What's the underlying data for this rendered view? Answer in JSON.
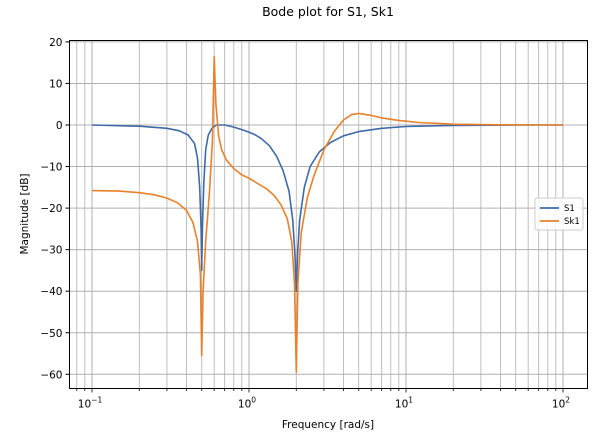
{
  "chart_data": {
    "type": "line",
    "title": "Bode plot for S1, Sk1",
    "xlabel": "Frequency [rad/s]",
    "ylabel": "Magnitude [dB]",
    "xscale": "log",
    "xlim": [
      0.075,
      140
    ],
    "ylim": [
      -63,
      20.5
    ],
    "grid": true,
    "grid_minor_x": true,
    "legend_position": "center right",
    "x_ticks": [
      {
        "value": 0.1,
        "label": "10^-1"
      },
      {
        "value": 1,
        "label": "10^0"
      },
      {
        "value": 10,
        "label": "10^1"
      },
      {
        "value": 100,
        "label": "10^2"
      }
    ],
    "y_ticks": [
      20,
      10,
      0,
      -10,
      -20,
      -30,
      -40,
      -50,
      -60
    ],
    "series": [
      {
        "name": "S1",
        "color": "#3f6aa8",
        "points": [
          [
            0.1,
            0.0
          ],
          [
            0.2,
            -0.3
          ],
          [
            0.3,
            -0.8
          ],
          [
            0.36,
            -1.4
          ],
          [
            0.41,
            -2.4
          ],
          [
            0.45,
            -4.5
          ],
          [
            0.47,
            -8
          ],
          [
            0.485,
            -15
          ],
          [
            0.495,
            -25
          ],
          [
            0.5,
            -35
          ],
          [
            0.505,
            -25
          ],
          [
            0.515,
            -14
          ],
          [
            0.53,
            -6
          ],
          [
            0.55,
            -2.5
          ],
          [
            0.58,
            -0.8
          ],
          [
            0.62,
            0.0
          ],
          [
            0.7,
            0.0
          ],
          [
            0.8,
            -0.5
          ],
          [
            0.9,
            -1.1
          ],
          [
            1.0,
            -1.7
          ],
          [
            1.1,
            -2.4
          ],
          [
            1.2,
            -3.3
          ],
          [
            1.35,
            -5
          ],
          [
            1.5,
            -7.5
          ],
          [
            1.65,
            -11
          ],
          [
            1.8,
            -16
          ],
          [
            1.9,
            -23
          ],
          [
            1.96,
            -31
          ],
          [
            2.0,
            -40
          ],
          [
            2.04,
            -31
          ],
          [
            2.1,
            -23
          ],
          [
            2.25,
            -15
          ],
          [
            2.45,
            -10
          ],
          [
            2.8,
            -6.5
          ],
          [
            3.3,
            -4.2
          ],
          [
            4.0,
            -2.6
          ],
          [
            5.0,
            -1.6
          ],
          [
            7.0,
            -0.8
          ],
          [
            10.0,
            -0.35
          ],
          [
            20.0,
            -0.1
          ],
          [
            50.0,
            0.0
          ],
          [
            100.0,
            0.0
          ]
        ]
      },
      {
        "name": "Sk1",
        "color": "#e8812a",
        "points": [
          [
            0.1,
            -15.8
          ],
          [
            0.15,
            -15.9
          ],
          [
            0.2,
            -16.3
          ],
          [
            0.25,
            -16.8
          ],
          [
            0.3,
            -17.6
          ],
          [
            0.35,
            -18.7
          ],
          [
            0.4,
            -20.5
          ],
          [
            0.44,
            -23.5
          ],
          [
            0.47,
            -28
          ],
          [
            0.49,
            -36
          ],
          [
            0.5,
            -55.5
          ],
          [
            0.51,
            -40
          ],
          [
            0.53,
            -28
          ],
          [
            0.56,
            -16
          ],
          [
            0.585,
            -4
          ],
          [
            0.6,
            16.5
          ],
          [
            0.615,
            5
          ],
          [
            0.64,
            -2.5
          ],
          [
            0.67,
            -6
          ],
          [
            0.72,
            -8.5
          ],
          [
            0.8,
            -10.5
          ],
          [
            0.9,
            -12
          ],
          [
            1.0,
            -12.8
          ],
          [
            1.15,
            -14.2
          ],
          [
            1.3,
            -15.4
          ],
          [
            1.45,
            -17
          ],
          [
            1.6,
            -19.2
          ],
          [
            1.75,
            -22.5
          ],
          [
            1.87,
            -28
          ],
          [
            1.95,
            -38
          ],
          [
            2.0,
            -59.5
          ],
          [
            2.05,
            -38
          ],
          [
            2.15,
            -26
          ],
          [
            2.35,
            -17.5
          ],
          [
            2.6,
            -12
          ],
          [
            3.0,
            -6
          ],
          [
            3.5,
            -1.5
          ],
          [
            4.0,
            1.2
          ],
          [
            4.5,
            2.5
          ],
          [
            5.0,
            2.8
          ],
          [
            6.0,
            2.3
          ],
          [
            7.0,
            1.7
          ],
          [
            9.0,
            1.1
          ],
          [
            12.0,
            0.6
          ],
          [
            20.0,
            0.2
          ],
          [
            40.0,
            0.05
          ],
          [
            100.0,
            0.0
          ]
        ]
      }
    ]
  }
}
